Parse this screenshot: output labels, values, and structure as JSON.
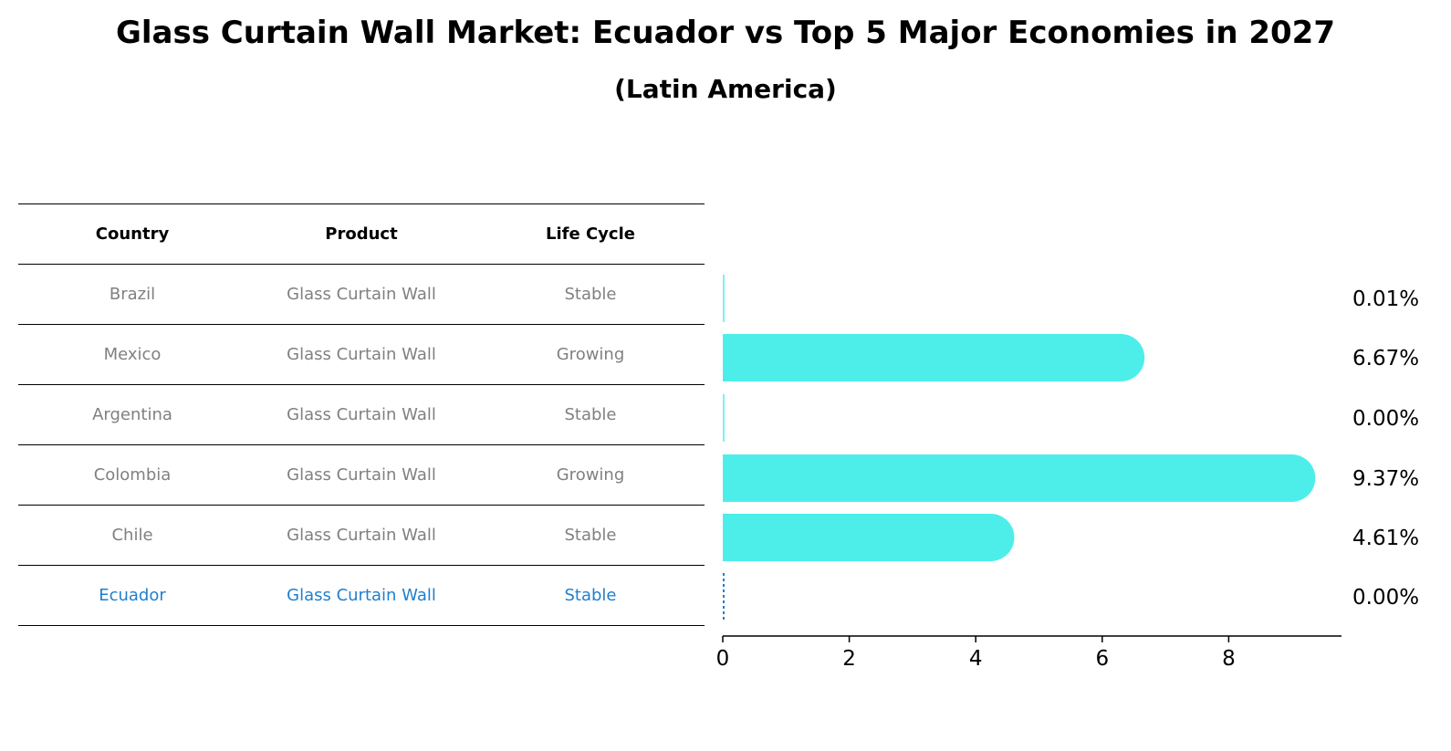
{
  "title": "Glass Curtain Wall Market: Ecuador vs Top 5 Major Economies in 2027",
  "subtitle": "(Latin America)",
  "colors": {
    "bar": "#4deeea",
    "highlight": "#1f7fce",
    "muted_text": "#808080"
  },
  "table": {
    "headers": [
      "Country",
      "Product",
      "Life Cycle"
    ],
    "rows": [
      {
        "country": "Brazil",
        "product": "Glass Curtain Wall",
        "life_cycle": "Stable"
      },
      {
        "country": "Mexico",
        "product": "Glass Curtain Wall",
        "life_cycle": "Growing"
      },
      {
        "country": "Argentina",
        "product": "Glass Curtain Wall",
        "life_cycle": "Stable"
      },
      {
        "country": "Colombia",
        "product": "Glass Curtain Wall",
        "life_cycle": "Growing"
      },
      {
        "country": "Chile",
        "product": "Glass Curtain Wall",
        "life_cycle": "Stable"
      },
      {
        "country": "Ecuador",
        "product": "Glass Curtain Wall",
        "life_cycle": "Stable",
        "highlighted": true
      }
    ]
  },
  "chart_data": {
    "type": "bar",
    "orientation": "horizontal",
    "categories": [
      "Brazil",
      "Mexico",
      "Argentina",
      "Colombia",
      "Chile",
      "Ecuador"
    ],
    "values": [
      0.01,
      6.67,
      0.0,
      9.37,
      4.61,
      0.0
    ],
    "value_labels": [
      "0.01%",
      "6.67%",
      "0.00%",
      "9.37%",
      "4.61%",
      "0.00%"
    ],
    "xlim": [
      0,
      9.8
    ],
    "xticks": [
      0,
      2,
      4,
      6,
      8
    ],
    "grid": false,
    "legend": "none"
  }
}
